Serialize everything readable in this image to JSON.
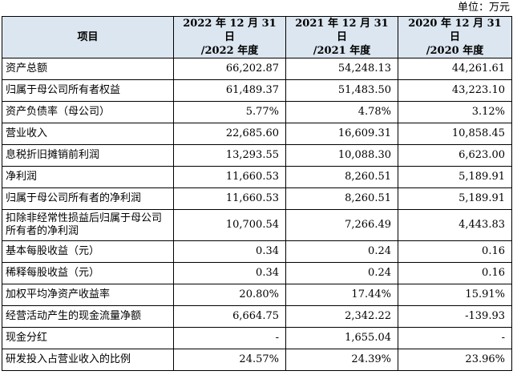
{
  "unit_label": "单位：万元",
  "header": {
    "item": "项目",
    "cols": [
      {
        "line1": "2022 年 12 月 31 日",
        "line2": "/2022 年度"
      },
      {
        "line1": "2021 年 12 月 31 日",
        "line2": "/2021 年度"
      },
      {
        "line1": "2020 年 12 月 31 日",
        "line2": "/2020 年度"
      }
    ]
  },
  "rows": [
    {
      "label": "资产总额",
      "v2022": "66,202.87",
      "v2021": "54,248.13",
      "v2020": "44,261.61"
    },
    {
      "label": "归属于母公司所有者权益",
      "v2022": "61,489.37",
      "v2021": "51,483.50",
      "v2020": "43,223.10"
    },
    {
      "label": "资产负债率（母公司）",
      "v2022": "5.77%",
      "v2021": "4.78%",
      "v2020": "3.12%"
    },
    {
      "label": "营业收入",
      "v2022": "22,685.60",
      "v2021": "16,609.31",
      "v2020": "10,858.45"
    },
    {
      "label": "息税折旧摊销前利润",
      "v2022": "13,293.55",
      "v2021": "10,088.30",
      "v2020": "6,623.00"
    },
    {
      "label": "净利润",
      "v2022": "11,660.53",
      "v2021": "8,260.51",
      "v2020": "5,189.91"
    },
    {
      "label": "归属于母公司所有者的净利润",
      "v2022": "11,660.53",
      "v2021": "8,260.51",
      "v2020": "5,189.91"
    },
    {
      "label": "扣除非经常性损益后归属于母公司所有者的净利润",
      "v2022": "10,700.54",
      "v2021": "7,266.49",
      "v2020": "4,443.83"
    },
    {
      "label": "基本每股收益（元）",
      "v2022": "0.34",
      "v2021": "0.24",
      "v2020": "0.16"
    },
    {
      "label": "稀释每股收益（元）",
      "v2022": "0.34",
      "v2021": "0.24",
      "v2020": "0.16"
    },
    {
      "label": "加权平均净资产收益率",
      "v2022": "20.80%",
      "v2021": "17.44%",
      "v2020": "15.91%"
    },
    {
      "label": "经营活动产生的现金流量净额",
      "v2022": "6,664.75",
      "v2021": "2,342.22",
      "v2020": "-139.93"
    },
    {
      "label": "现金分红",
      "v2022": "-",
      "v2021": "1,655.04",
      "v2020": "-"
    },
    {
      "label": "研发投入占营业收入的比例",
      "v2022": "24.57%",
      "v2021": "24.39%",
      "v2020": "23.96%"
    }
  ]
}
